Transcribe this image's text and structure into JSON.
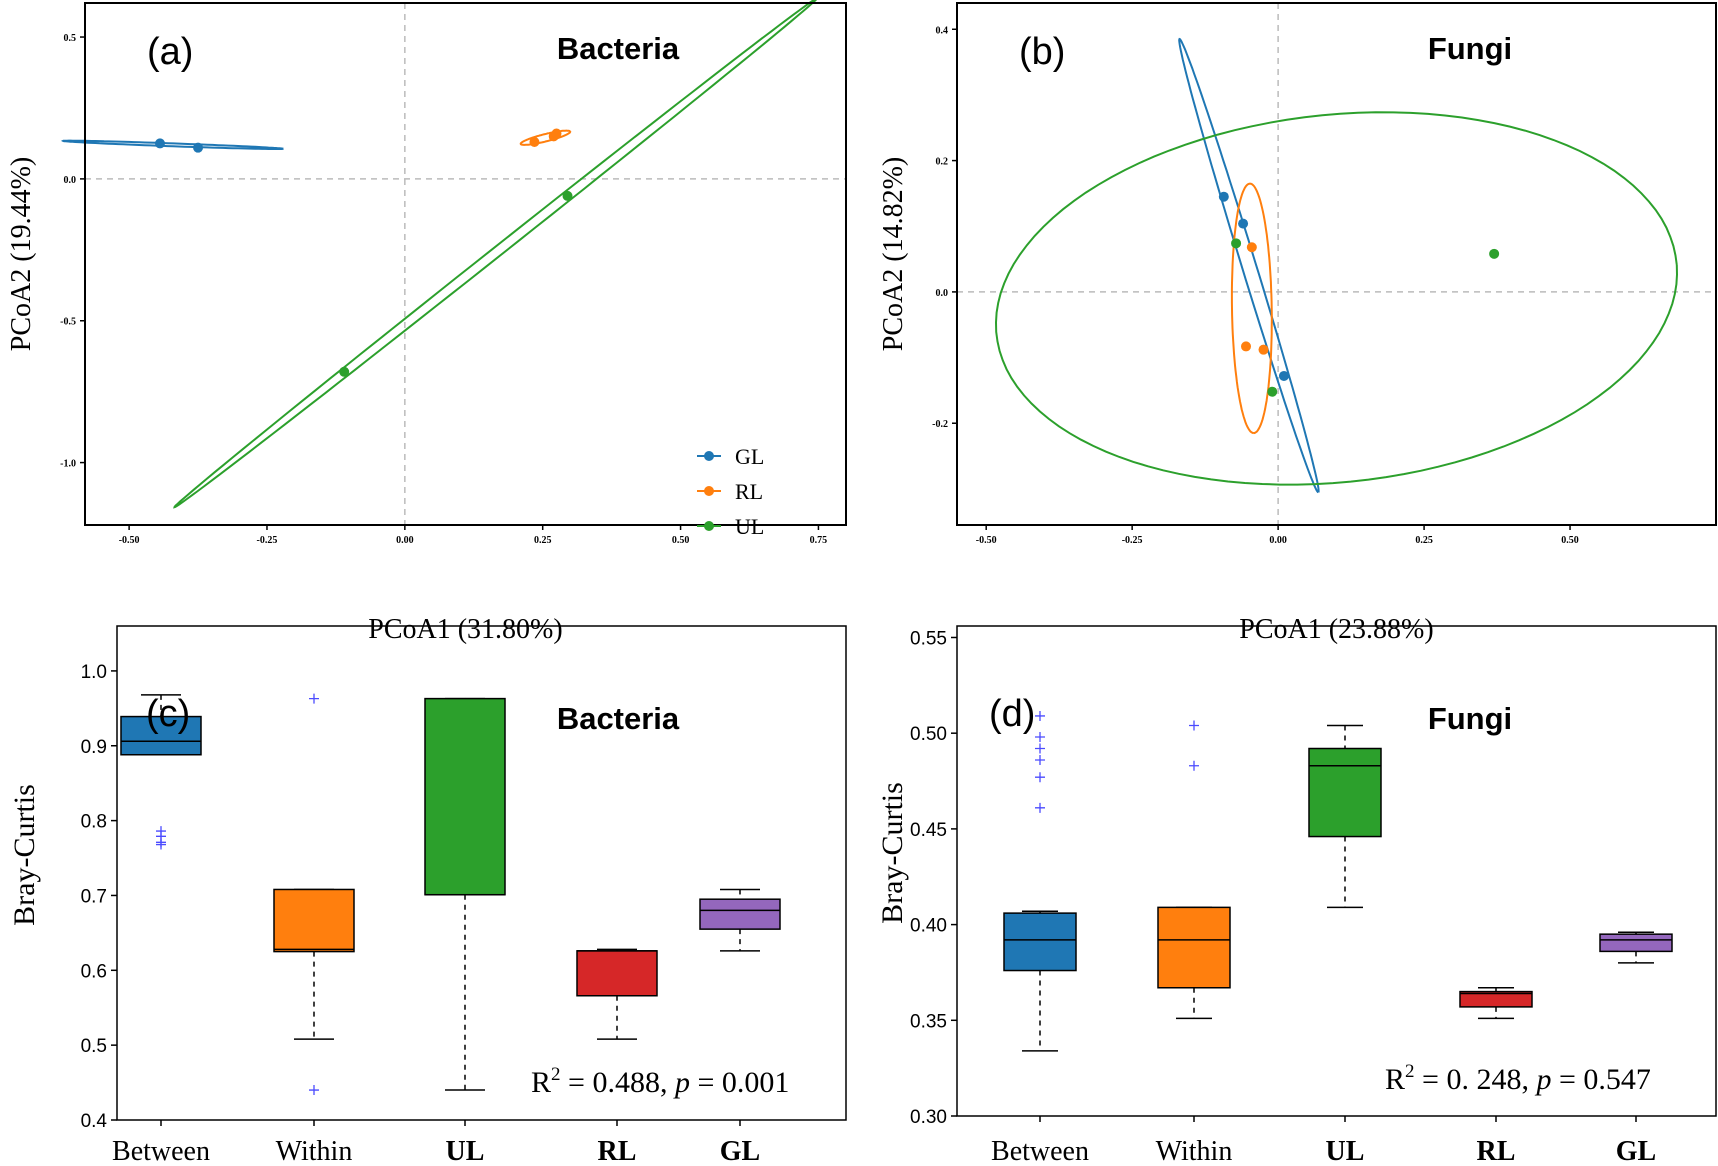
{
  "colors": {
    "GL": "#1f77b4",
    "RL": "#ff7f0e",
    "UL": "#2ca02c",
    "purple": "#9467bd",
    "red": "#d62728",
    "flier": "#4b4bff"
  },
  "chart_data": [
    {
      "panel": "(a)",
      "type": "scatter",
      "title": "Bacteria",
      "xlabel": "PCoA1  (31.80%)",
      "ylabel": "PCoA2  (19.44%)",
      "xlim": [
        -0.58,
        0.8
      ],
      "ylim": [
        -1.22,
        0.62
      ],
      "xticks": [
        -0.5,
        -0.25,
        0.0,
        0.25,
        0.5,
        0.75
      ],
      "xticklabels": [
        "-0.50",
        "-0.25",
        "0.00",
        "0.25",
        "0.50",
        "0.75"
      ],
      "yticks": [
        0.5,
        0.0,
        -0.5,
        -1.0
      ],
      "yticklabels": [
        "0.5",
        "0.0",
        "-0.5",
        "-1.0"
      ],
      "legend": {
        "position": "lower-right",
        "entries": [
          "GL",
          "RL",
          "UL"
        ]
      },
      "series": [
        {
          "name": "GL",
          "points": [
            [
              -0.444,
              0.125
            ],
            [
              -0.375,
              0.11
            ]
          ]
        },
        {
          "name": "RL",
          "points": [
            [
              0.235,
              0.13
            ],
            [
              0.27,
              0.15
            ],
            [
              0.275,
              0.16
            ]
          ]
        },
        {
          "name": "UL",
          "points": [
            [
              0.295,
              -0.06
            ],
            [
              -0.11,
              -0.68
            ]
          ]
        }
      ],
      "ellipses": [
        {
          "name": "GL",
          "cx": -0.42,
          "cy": 0.12,
          "a": 0.2,
          "b": 0.005,
          "angle_deg": -4
        },
        {
          "name": "RL",
          "cx": 0.255,
          "cy": 0.145,
          "a": 0.05,
          "b": 0.012,
          "angle_deg": 27
        },
        {
          "name": "UL",
          "cx": 0.165,
          "cy": -0.26,
          "a": 1.07,
          "b": 0.012,
          "angle_deg": 57
        }
      ],
      "gridlines": "dashed at 0"
    },
    {
      "panel": "(b)",
      "type": "scatter",
      "title": "Fungi",
      "xlabel": "PCoA1  (23.88%)",
      "ylabel": "PCoA2  (14.82%)",
      "xlim": [
        -0.55,
        0.75
      ],
      "ylim": [
        -0.355,
        0.44
      ],
      "xticks": [
        -0.5,
        -0.25,
        0.0,
        0.25,
        0.5
      ],
      "xticklabels": [
        "-0.50",
        "-0.25",
        "0.00",
        "0.25",
        "0.50"
      ],
      "yticks": [
        0.4,
        0.2,
        0.0,
        -0.2
      ],
      "yticklabels": [
        "0.4",
        "0.2",
        "0.0",
        "-0.2"
      ],
      "series": [
        {
          "name": "GL",
          "points": [
            [
              -0.093,
              0.145
            ],
            [
              -0.06,
              0.104
            ],
            [
              0.01,
              -0.128
            ]
          ]
        },
        {
          "name": "RL",
          "points": [
            [
              -0.045,
              0.068
            ],
            [
              -0.055,
              -0.083
            ],
            [
              -0.025,
              -0.088
            ]
          ]
        },
        {
          "name": "UL",
          "points": [
            [
              -0.072,
              0.074
            ],
            [
              -0.01,
              -0.152
            ],
            [
              0.37,
              0.058
            ]
          ]
        }
      ],
      "ellipses": [
        {
          "name": "GL",
          "cx": -0.05,
          "cy": 0.04,
          "a": 0.365,
          "b": 0.012,
          "angle_deg": -71
        },
        {
          "name": "RL",
          "cx": -0.045,
          "cy": -0.025,
          "a": 0.19,
          "b": 0.034,
          "angle_deg": -89
        },
        {
          "name": "UL",
          "cx": 0.1,
          "cy": -0.01,
          "a": 0.585,
          "b": 0.28,
          "angle_deg": 5
        }
      ],
      "gridlines": "dashed at 0"
    },
    {
      "panel": "(c)",
      "type": "box",
      "title": "Bacteria",
      "ylabel": "Bray-Curtis",
      "ylim": [
        0.4,
        1.06
      ],
      "yticks": [
        0.4,
        0.5,
        0.6,
        0.7,
        0.8,
        0.9,
        1.0
      ],
      "yticklabels": [
        "0.4",
        "0.5",
        "0.6",
        "0.7",
        "0.8",
        "0.9",
        "1.0"
      ],
      "categories": [
        "Between",
        "Within",
        "UL",
        "RL",
        "GL"
      ],
      "bold_categories": [
        "UL",
        "RL",
        "GL"
      ],
      "boxes": [
        {
          "name": "Between",
          "min": 0.888,
          "q1": 0.888,
          "median": 0.906,
          "q3": 0.939,
          "max": 0.968,
          "fliers": [
            0.786,
            0.779,
            0.771,
            0.768
          ],
          "color": "#1f77b4"
        },
        {
          "name": "Within",
          "min": 0.508,
          "q1": 0.625,
          "median": 0.628,
          "q3": 0.708,
          "max": 0.708,
          "fliers": [
            0.963,
            0.44
          ],
          "color": "#ff7f0e"
        },
        {
          "name": "UL",
          "min": 0.44,
          "q1": 0.701,
          "median": 0.701,
          "q3": 0.963,
          "max": 0.963,
          "fliers": [],
          "color": "#2ca02c"
        },
        {
          "name": "RL",
          "min": 0.508,
          "q1": 0.566,
          "median": 0.626,
          "q3": 0.626,
          "max": 0.628,
          "fliers": [],
          "color": "#d62728"
        },
        {
          "name": "GL",
          "min": 0.626,
          "q1": 0.655,
          "median": 0.68,
          "q3": 0.695,
          "max": 0.708,
          "fliers": [],
          "color": "#9467bd"
        }
      ],
      "annotation": {
        "r2": "0.488",
        "p": "0.001"
      }
    },
    {
      "panel": "(d)",
      "type": "box",
      "title": "Fungi",
      "ylabel": "Bray-Curtis",
      "ylim": [
        0.3,
        0.556
      ],
      "yticks": [
        0.3,
        0.35,
        0.4,
        0.45,
        0.5,
        0.55
      ],
      "yticklabels": [
        "0.30",
        "0.35",
        "0.40",
        "0.45",
        "0.50",
        "0.55"
      ],
      "categories": [
        "Between",
        "Within",
        "UL",
        "RL",
        "GL"
      ],
      "bold_categories": [
        "UL",
        "RL",
        "GL"
      ],
      "boxes": [
        {
          "name": "Between",
          "min": 0.334,
          "q1": 0.376,
          "median": 0.392,
          "q3": 0.406,
          "max": 0.407,
          "fliers": [
            0.509,
            0.498,
            0.492,
            0.486,
            0.477,
            0.461
          ],
          "color": "#1f77b4"
        },
        {
          "name": "Within",
          "min": 0.351,
          "q1": 0.367,
          "median": 0.392,
          "q3": 0.409,
          "max": 0.409,
          "fliers": [
            0.504,
            0.483
          ],
          "color": "#ff7f0e"
        },
        {
          "name": "UL",
          "min": 0.409,
          "q1": 0.446,
          "median": 0.483,
          "q3": 0.492,
          "max": 0.504,
          "fliers": [],
          "color": "#2ca02c"
        },
        {
          "name": "RL",
          "min": 0.351,
          "q1": 0.357,
          "median": 0.364,
          "q3": 0.365,
          "max": 0.367,
          "fliers": [],
          "color": "#d62728"
        },
        {
          "name": "GL",
          "min": 0.38,
          "q1": 0.386,
          "median": 0.392,
          "q3": 0.395,
          "max": 0.396,
          "fliers": [],
          "color": "#9467bd"
        }
      ],
      "annotation": {
        "r2": "0. 248",
        "p": "0.547"
      }
    }
  ]
}
